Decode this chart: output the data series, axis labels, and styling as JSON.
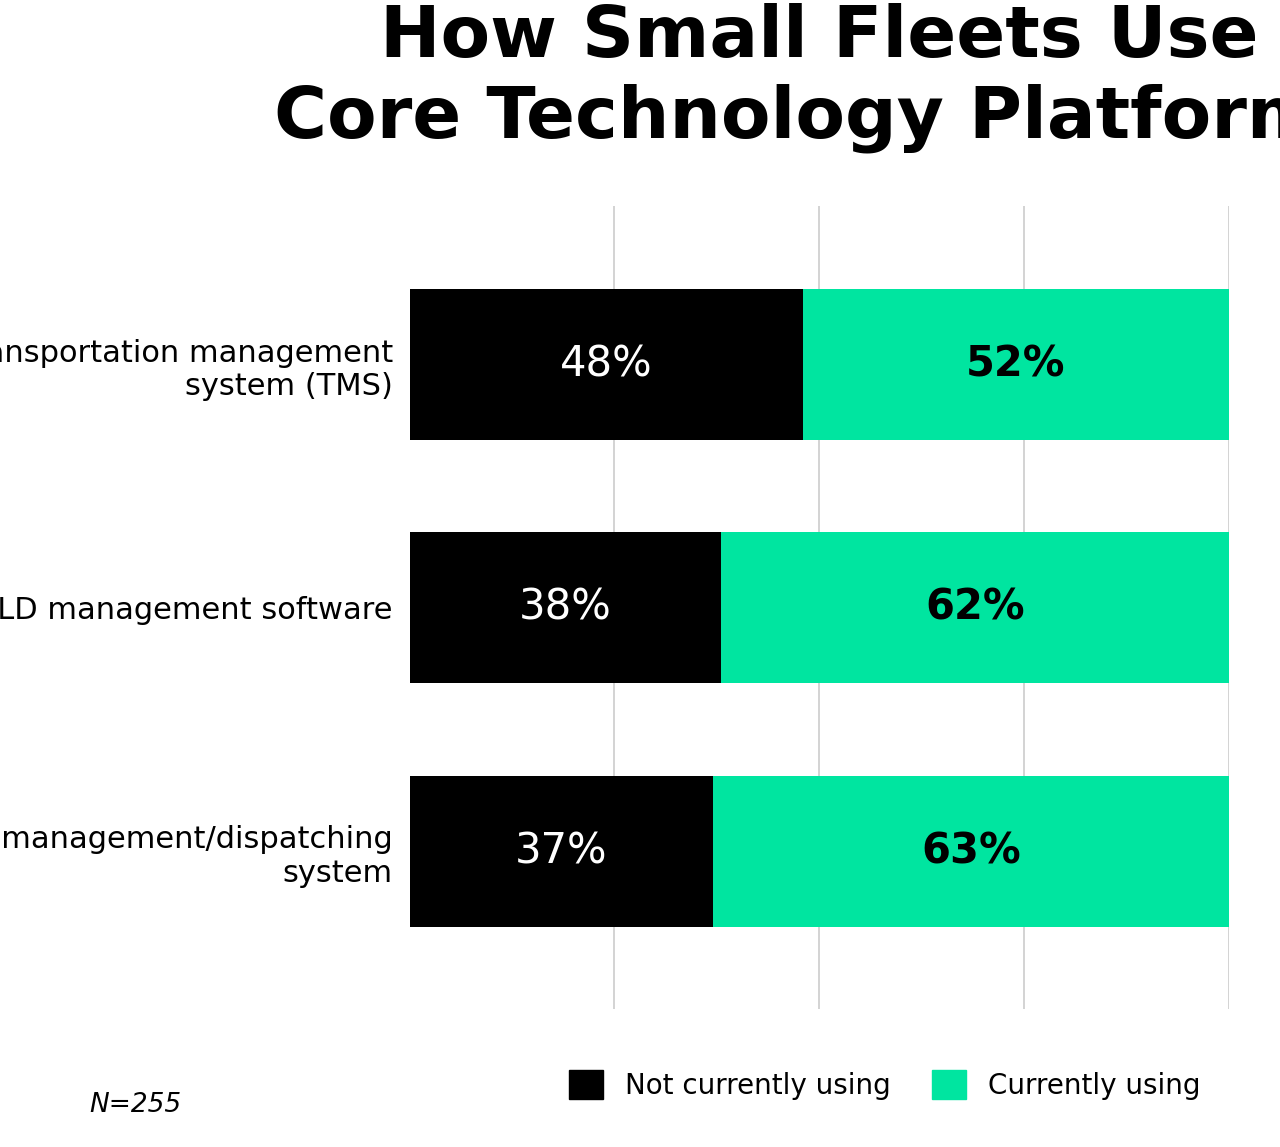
{
  "title": "How Small Fleets Use\nCore Technology Platforms",
  "categories": [
    "Fleet management/dispatching\nsystem",
    "ELD management software",
    "Transportation management\nsystem (TMS)"
  ],
  "not_using": [
    37,
    38,
    48
  ],
  "currently_using": [
    63,
    62,
    52
  ],
  "color_not_using": "#000000",
  "color_using": "#00e5a0",
  "label_color_not": "#ffffff",
  "label_color_using": "#000000",
  "background_color": "#ffffff",
  "title_fontsize": 52,
  "bar_label_fontsize": 30,
  "category_fontsize": 22,
  "legend_fontsize": 20,
  "note": "N=255",
  "note_fontsize": 19,
  "xlim": [
    0,
    100
  ],
  "bar_height": 0.62,
  "grid_color": "#cccccc",
  "legend_label_not": "Not currently using",
  "legend_label_using": "Currently using"
}
